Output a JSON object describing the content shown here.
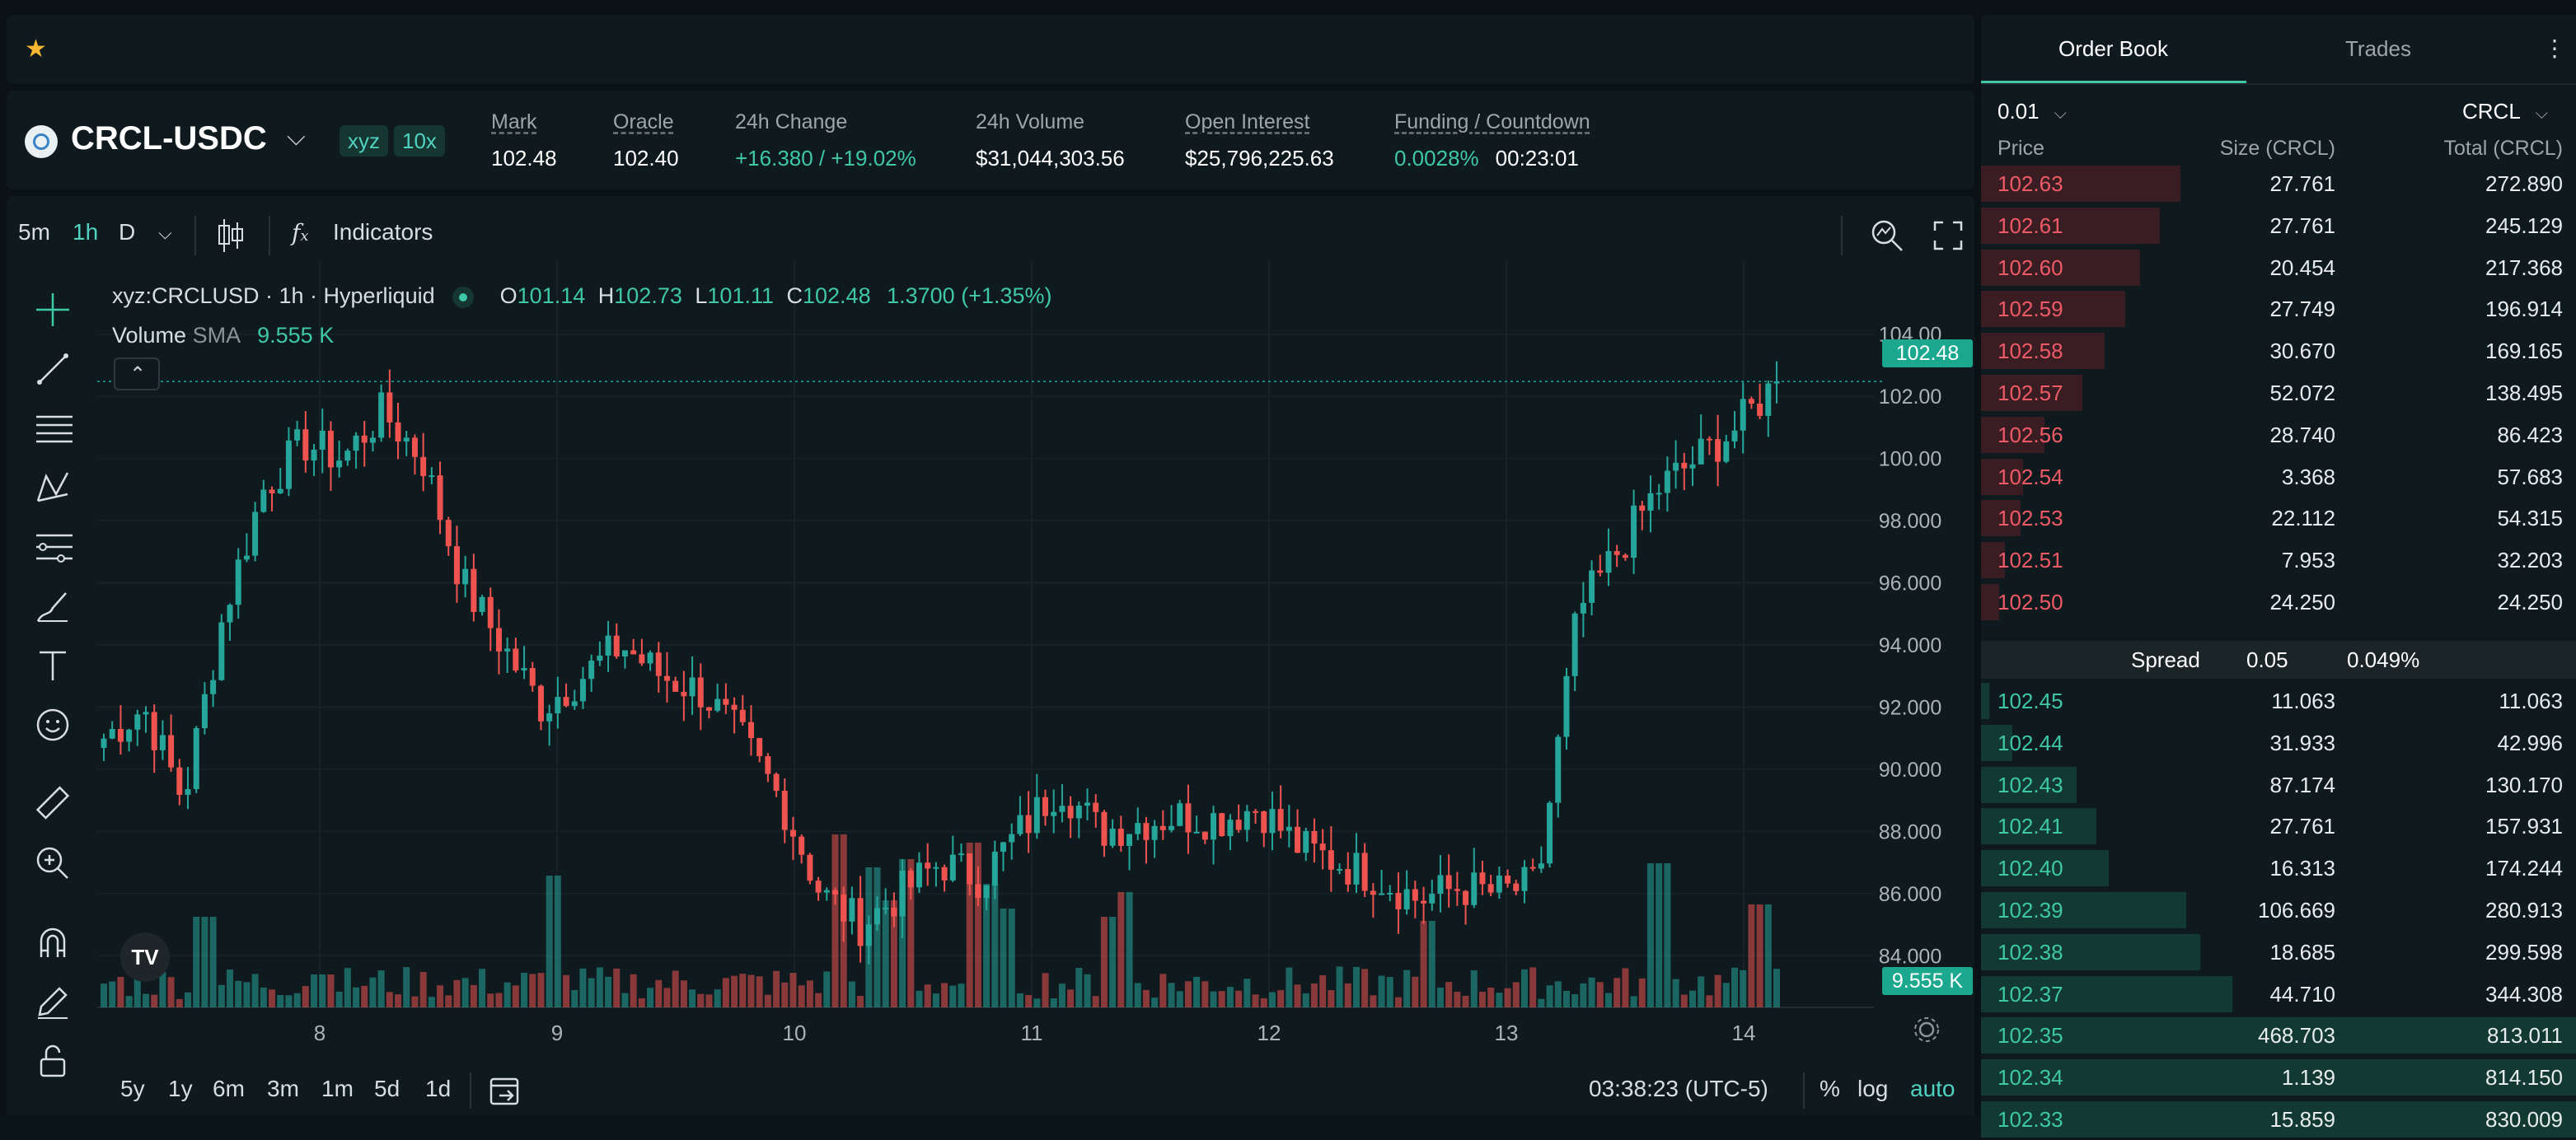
{
  "favorites": {
    "star_icon": "star-icon"
  },
  "ticker": {
    "pair": "CRCL-USDC",
    "badges": [
      "xyz",
      "10x"
    ],
    "stats": [
      {
        "label": "Mark",
        "value": "102.48",
        "underline": true
      },
      {
        "label": "Oracle",
        "value": "102.40",
        "underline": true
      },
      {
        "label": "24h Change",
        "value": "+16.380 / +19.02%",
        "underline": false
      },
      {
        "label": "24h Volume",
        "value": "$31,044,303.56",
        "underline": false
      },
      {
        "label": "Open Interest",
        "value": "$25,796,225.63",
        "underline": true
      },
      {
        "label": "Funding / Countdown",
        "value": "0.0028%",
        "value2": "00:23:01",
        "underline": true
      }
    ]
  },
  "toolbar": {
    "intervals": [
      "5m",
      "1h",
      "D"
    ],
    "active_interval": "1h",
    "indicators_label": "Indicators"
  },
  "legend": {
    "symbol": "xyz:CRCLUSD · 1h · Hyperliquid",
    "o_label": "O",
    "o": "101.14",
    "h_label": "H",
    "h": "102.73",
    "l_label": "L",
    "l": "101.11",
    "c_label": "C",
    "c": "102.48",
    "change": "1.3700 (+1.35%)",
    "volume_label": "Volume",
    "sma_label": "SMA",
    "volume_value": "9.555 K"
  },
  "price_axis": [
    "104.00",
    "102.00",
    "100.00",
    "98.000",
    "96.000",
    "94.000",
    "92.000",
    "90.000",
    "88.000",
    "86.000",
    "84.000"
  ],
  "last_price_tag": "102.48",
  "volume_tag": "9.555 K",
  "time_axis": [
    "8",
    "9",
    "10",
    "11",
    "12",
    "13",
    "14"
  ],
  "bottom_bar": {
    "ranges": [
      "5y",
      "1y",
      "6m",
      "3m",
      "1m",
      "5d",
      "1d"
    ],
    "clock": "03:38:23 (UTC-5)",
    "percent": "%",
    "log": "log",
    "auto": "auto"
  },
  "chart_data": {
    "type": "candlestick",
    "y_range": [
      83,
      105
    ],
    "x_labels": [
      "8",
      "9",
      "10",
      "11",
      "12",
      "13",
      "14"
    ],
    "last": 102.48,
    "close_path": [
      91,
      92,
      89,
      95,
      99,
      100.5,
      100,
      101.5,
      100,
      96,
      94,
      92,
      93,
      94,
      93,
      92.5,
      91,
      89,
      86,
      85,
      86,
      87,
      86.5,
      88,
      89.5,
      88,
      88.3,
      88.5,
      88.4,
      88.8,
      87.5,
      87,
      86.5,
      85.8,
      86.2,
      86,
      86.3,
      95,
      97,
      99,
      100,
      101,
      102.48
    ],
    "volume_hint": "bars along bottom with spikes near day 8.3, 9.4, 10.4, 12.8, 13.3, 14"
  },
  "orderbook": {
    "tabs": [
      "Order Book",
      "Trades"
    ],
    "tick": "0.01",
    "unit": "CRCL",
    "headers": {
      "price": "Price",
      "size": "Size (CRCL)",
      "total": "Total (CRCL)"
    },
    "asks": [
      {
        "price": "102.63",
        "size": "27.761",
        "total": "272.890",
        "depth": 0.335
      },
      {
        "price": "102.61",
        "size": "27.761",
        "total": "245.129",
        "depth": 0.301
      },
      {
        "price": "102.60",
        "size": "20.454",
        "total": "217.368",
        "depth": 0.267
      },
      {
        "price": "102.59",
        "size": "27.749",
        "total": "196.914",
        "depth": 0.242
      },
      {
        "price": "102.58",
        "size": "30.670",
        "total": "169.165",
        "depth": 0.208
      },
      {
        "price": "102.57",
        "size": "52.072",
        "total": "138.495",
        "depth": 0.17
      },
      {
        "price": "102.56",
        "size": "28.740",
        "total": "86.423",
        "depth": 0.106
      },
      {
        "price": "102.54",
        "size": "3.368",
        "total": "57.683",
        "depth": 0.071
      },
      {
        "price": "102.53",
        "size": "22.112",
        "total": "54.315",
        "depth": 0.067
      },
      {
        "price": "102.51",
        "size": "7.953",
        "total": "32.203",
        "depth": 0.04
      },
      {
        "price": "102.50",
        "size": "24.250",
        "total": "24.250",
        "depth": 0.03
      }
    ],
    "spread": {
      "label": "Spread",
      "value": "0.05",
      "pct": "0.049%"
    },
    "bids": [
      {
        "price": "102.45",
        "size": "11.063",
        "total": "11.063",
        "depth": 0.014
      },
      {
        "price": "102.44",
        "size": "31.933",
        "total": "42.996",
        "depth": 0.053
      },
      {
        "price": "102.43",
        "size": "87.174",
        "total": "130.170",
        "depth": 0.16
      },
      {
        "price": "102.41",
        "size": "27.761",
        "total": "157.931",
        "depth": 0.194
      },
      {
        "price": "102.40",
        "size": "16.313",
        "total": "174.244",
        "depth": 0.214
      },
      {
        "price": "102.39",
        "size": "106.669",
        "total": "280.913",
        "depth": 0.345
      },
      {
        "price": "102.38",
        "size": "18.685",
        "total": "299.598",
        "depth": 0.368
      },
      {
        "price": "102.37",
        "size": "44.710",
        "total": "344.308",
        "depth": 0.423
      },
      {
        "price": "102.35",
        "size": "468.703",
        "total": "813.011",
        "depth": 1.0
      },
      {
        "price": "102.34",
        "size": "1.139",
        "total": "814.150",
        "depth": 1.0
      },
      {
        "price": "102.33",
        "size": "15.859",
        "total": "830.009",
        "depth": 1.0
      }
    ]
  }
}
